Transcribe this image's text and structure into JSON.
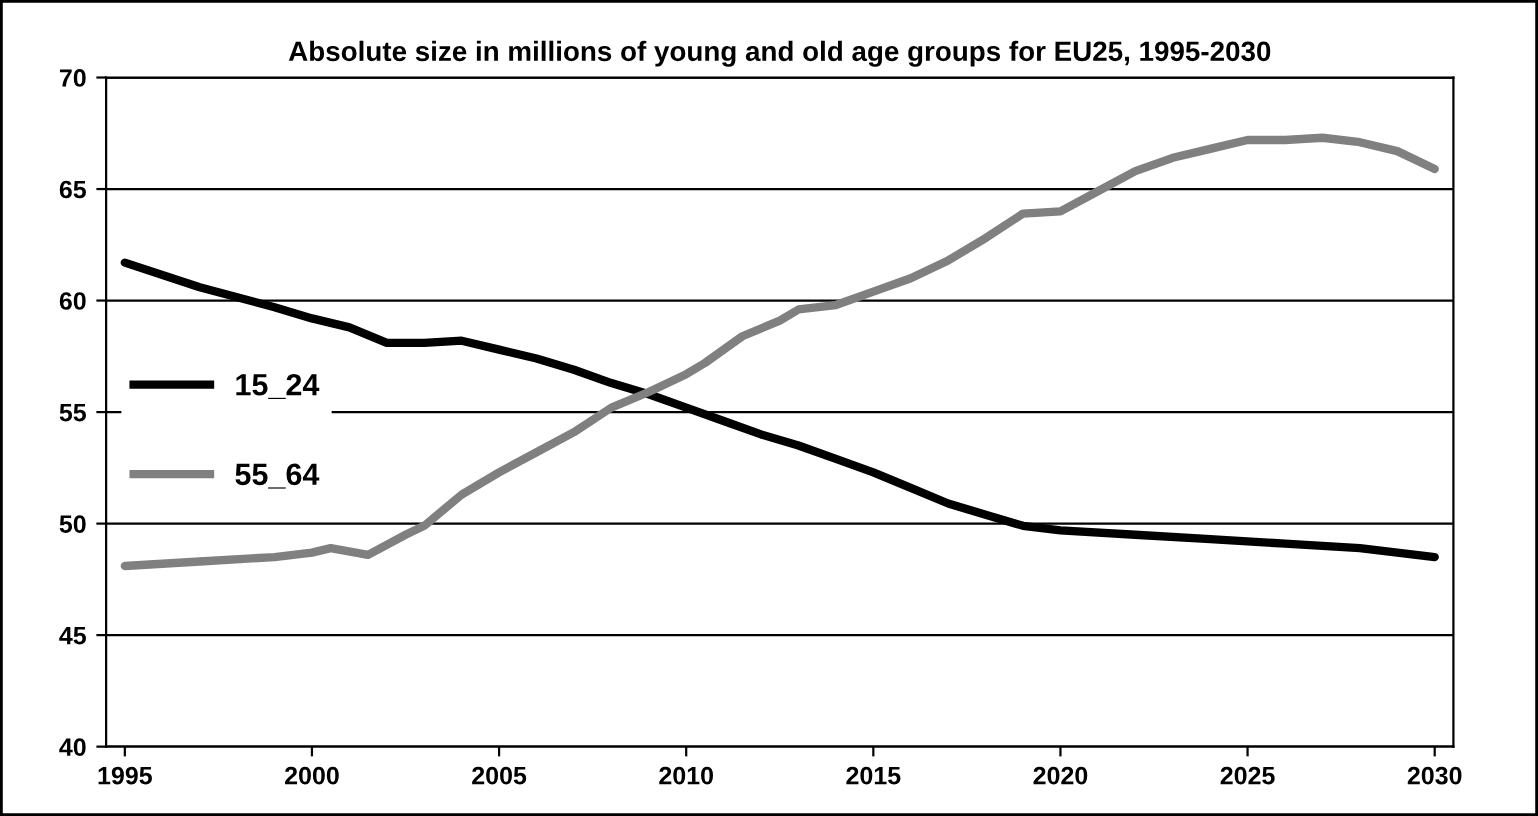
{
  "chart_data": {
    "type": "line",
    "title": "Absolute size in millions of young and old age groups for EU25, 1995-2030",
    "xlim": [
      1994.5,
      2030.5
    ],
    "xticks": [
      1995,
      2000,
      2005,
      2010,
      2015,
      2020,
      2025,
      2030
    ],
    "ylim": [
      40,
      70
    ],
    "yticks": [
      40,
      45,
      50,
      55,
      60,
      65,
      70
    ],
    "grid": "y",
    "legend": "left",
    "series": [
      {
        "name": "15_24",
        "color": "#000000",
        "x": [
          1995,
          1997,
          1999,
          2000,
          2001,
          2002,
          2003,
          2004,
          2005,
          2006,
          2007,
          2008,
          2009,
          2010,
          2011,
          2012,
          2013,
          2014,
          2015,
          2016,
          2017,
          2018,
          2019,
          2020,
          2022,
          2024,
          2026,
          2028,
          2030
        ],
        "values": [
          61.7,
          60.6,
          59.7,
          59.2,
          58.8,
          58.1,
          58.1,
          58.2,
          57.8,
          57.4,
          56.9,
          56.3,
          55.8,
          55.2,
          54.6,
          54.0,
          53.5,
          52.9,
          52.3,
          51.6,
          50.9,
          50.4,
          49.9,
          49.7,
          49.5,
          49.3,
          49.1,
          48.9,
          48.5
        ]
      },
      {
        "name": "55_64",
        "color": "#808080",
        "x": [
          1995,
          1997,
          1999,
          2000,
          2000.5,
          2001.5,
          2002.5,
          2003,
          2004,
          2005,
          2006,
          2007,
          2008,
          2009,
          2010,
          2010.5,
          2011.5,
          2012.5,
          2013,
          2014,
          2015,
          2016,
          2017,
          2018,
          2019,
          2020,
          2021,
          2022,
          2023,
          2024,
          2025,
          2026,
          2027,
          2028,
          2029,
          2030
        ],
        "values": [
          48.1,
          48.3,
          48.5,
          48.7,
          48.9,
          48.6,
          49.5,
          49.9,
          51.3,
          52.3,
          53.2,
          54.1,
          55.2,
          55.9,
          56.7,
          57.2,
          58.4,
          59.1,
          59.6,
          59.8,
          60.4,
          61.0,
          61.8,
          62.8,
          63.9,
          64.0,
          64.9,
          65.8,
          66.4,
          66.8,
          67.2,
          67.2,
          67.3,
          67.1,
          66.7,
          65.9
        ]
      }
    ]
  }
}
